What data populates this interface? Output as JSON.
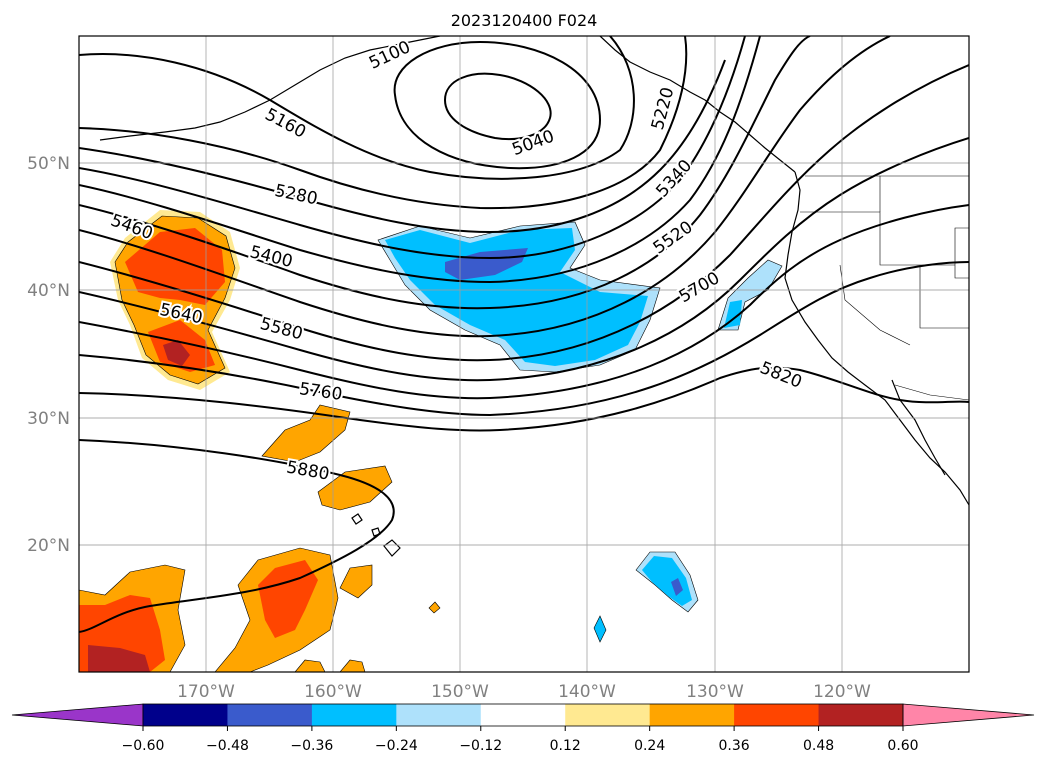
{
  "title": "2023120400 F024",
  "map": {
    "lon_labels": [
      "170°W",
      "160°W",
      "150°W",
      "140°W",
      "130°W",
      "120°W"
    ],
    "lat_labels": [
      "50°N",
      "40°N",
      "30°N",
      "20°N"
    ],
    "contour_labels": [
      "5040",
      "5100",
      "5160",
      "5220",
      "5280",
      "5340",
      "5400",
      "5460",
      "5520",
      "5580",
      "5640",
      "5700",
      "5760",
      "5820",
      "5880"
    ]
  },
  "colorbar": {
    "ticks": [
      "−0.60",
      "−0.48",
      "−0.36",
      "−0.24",
      "−0.12",
      "0.12",
      "0.24",
      "0.36",
      "0.48",
      "0.60"
    ],
    "colors": [
      "#9a35c9",
      "#00008b",
      "#3a5bcc",
      "#00bfff",
      "#aee1fb",
      "#ffffff",
      "#ffe991",
      "#ffa500",
      "#ff4500",
      "#b22222",
      "#ff85a8"
    ]
  },
  "fill_colors": {
    "neg_light": "#aee1fb",
    "neg_mid": "#00bfff",
    "neg_dark": "#3a5bcc",
    "pos_light": "#ffe991",
    "pos_mid": "#ffa500",
    "pos_dark": "#ff4500",
    "pos_darker": "#b22222"
  }
}
